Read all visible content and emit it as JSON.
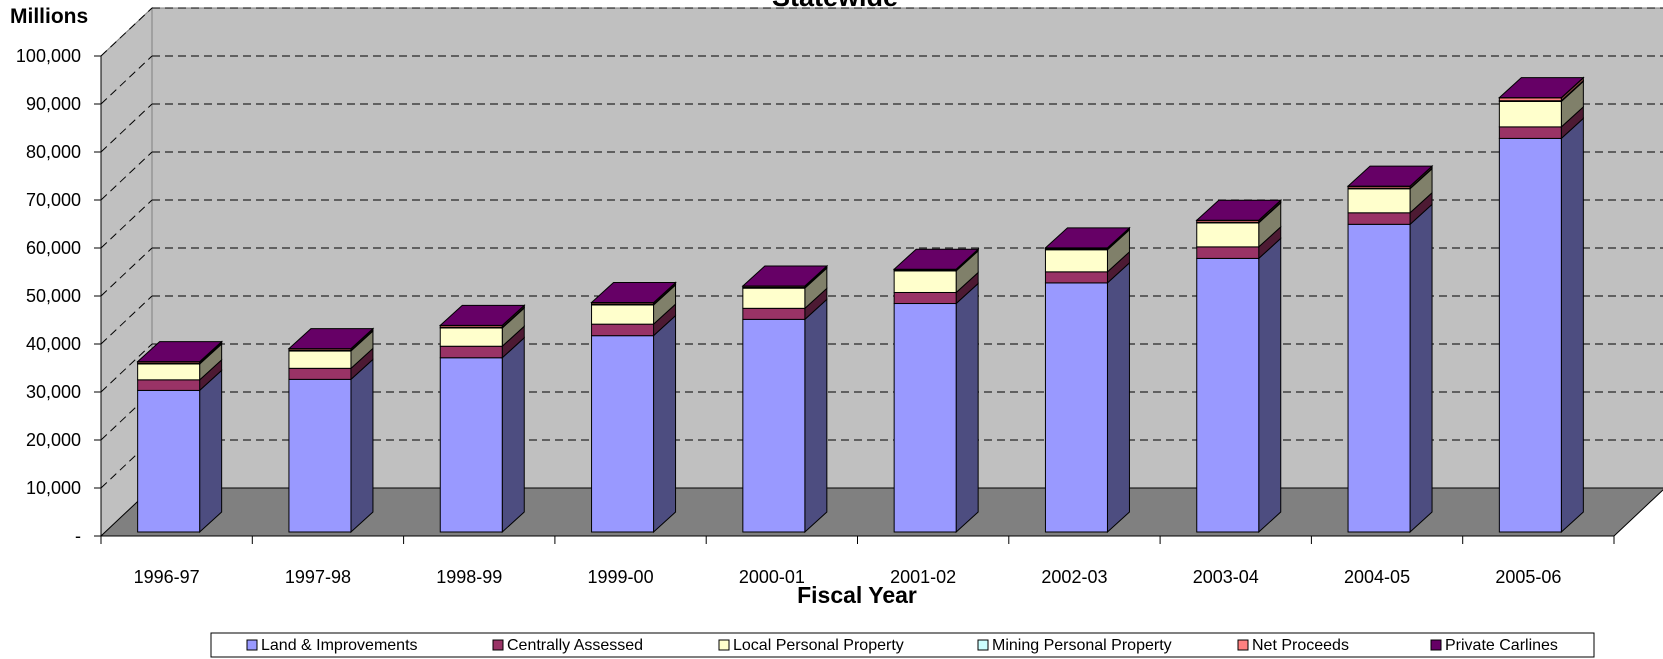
{
  "chart_data": {
    "type": "bar",
    "stacked": true,
    "three_d": true,
    "title": "Statewide",
    "units_label": "Millions",
    "xlabel": "Fiscal Year",
    "ylabel": "",
    "ylim": [
      0,
      100000
    ],
    "y_tick_labels": [
      "-",
      "10,000",
      "20,000",
      "30,000",
      "40,000",
      "50,000",
      "60,000",
      "70,000",
      "80,000",
      "90,000",
      "100,000"
    ],
    "y_tick_values": [
      0,
      10000,
      20000,
      30000,
      40000,
      50000,
      60000,
      70000,
      80000,
      90000,
      100000
    ],
    "grid": true,
    "legend_position": "bottom",
    "categories": [
      "1996-97",
      "1997-98",
      "1998-99",
      "1999-00",
      "2000-01",
      "2001-02",
      "2002-03",
      "2003-04",
      "2004-05",
      "2005-06"
    ],
    "series": [
      {
        "name": "Land & Improvements",
        "color": "#9999ff",
        "side_color": "#4d4d80",
        "top_color": "#7a7acc",
        "values": [
          29500,
          31800,
          36300,
          40900,
          44300,
          47600,
          51900,
          57000,
          64100,
          82000
        ]
      },
      {
        "name": "Centrally Assessed",
        "color": "#993366",
        "side_color": "#4d1a33",
        "top_color": "#7a2952",
        "values": [
          2200,
          2300,
          2400,
          2400,
          2300,
          2300,
          2300,
          2400,
          2400,
          2400
        ]
      },
      {
        "name": "Local Personal Property",
        "color": "#ffffcc",
        "side_color": "#80806a",
        "top_color": "#cccca3",
        "values": [
          3300,
          3600,
          3800,
          4000,
          4200,
          4500,
          4600,
          5000,
          5000,
          5300
        ]
      },
      {
        "name": "Mining Personal Property",
        "color": "#ccffff",
        "side_color": "#668080",
        "top_color": "#a3cccc",
        "values": [
          150,
          150,
          150,
          150,
          150,
          150,
          150,
          150,
          150,
          150
        ]
      },
      {
        "name": "Net Proceeds",
        "color": "#ff8080",
        "side_color": "#804040",
        "top_color": "#cc6666",
        "values": [
          300,
          300,
          350,
          300,
          250,
          150,
          200,
          350,
          350,
          600
        ]
      },
      {
        "name": "Private Carlines",
        "color": "#660066",
        "side_color": "#330033",
        "top_color": "#660066",
        "values": [
          50,
          50,
          50,
          50,
          50,
          50,
          50,
          50,
          50,
          50
        ]
      }
    ]
  },
  "colors": {
    "wall": "#c0c0c0",
    "floor": "#808080",
    "frame": "#808080",
    "text": "#000000"
  }
}
